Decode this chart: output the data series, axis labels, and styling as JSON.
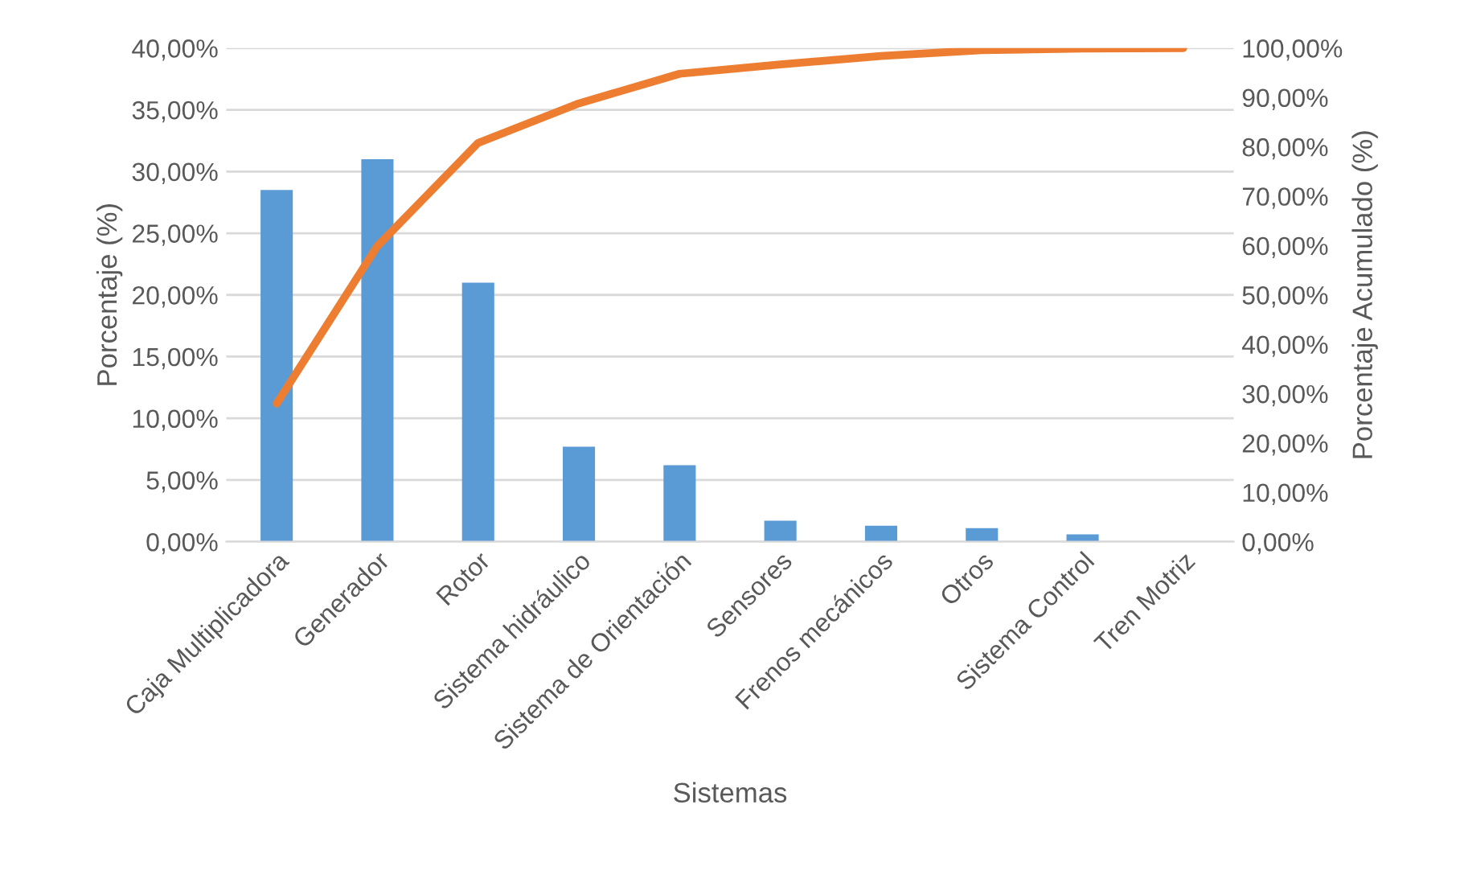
{
  "chart_data": {
    "type": "bar",
    "xlabel": "Sistemas",
    "ylabel": "Porcentaje (%)",
    "y2label": "Porcentaje Acumulado (%)",
    "categories": [
      "Caja Multiplicadora",
      "Generador",
      "Rotor",
      "Sistema hidráulico",
      "Sistema de Orientación",
      "Sensores",
      "Frenos mecánicos",
      "Otros",
      "Sistema Control",
      "Tren Motriz"
    ],
    "series": [
      {
        "color": "#5b9bd5",
        "values": [
          28.5,
          31.0,
          21.0,
          7.7,
          6.2,
          1.7,
          1.3,
          1.1,
          0.6,
          0
        ]
      },
      {
        "type": "line",
        "axis": "y2",
        "color": "#ed7d31",
        "values": [
          28.0,
          59.9,
          80.8,
          88.8,
          94.8,
          96.7,
          98.4,
          99.6,
          99.9,
          100
        ]
      }
    ],
    "ylim": [
      0,
      40
    ],
    "yticks": [
      {
        "value": 0,
        "label": "0,00%"
      },
      {
        "value": 5,
        "label": "5,00%"
      },
      {
        "value": 10,
        "label": "10,00%"
      },
      {
        "value": 15,
        "label": "15,00%"
      },
      {
        "value": 20,
        "label": "20,00%"
      },
      {
        "value": 25,
        "label": "25,00%"
      },
      {
        "value": 30,
        "label": "30,00%"
      },
      {
        "value": 35,
        "label": "35,00%"
      },
      {
        "value": 40,
        "label": "40,00%"
      }
    ],
    "y2lim": [
      0,
      100
    ],
    "y2ticks": [
      {
        "value": 0,
        "label": "0,00%"
      },
      {
        "value": 10,
        "label": "10,00%"
      },
      {
        "value": 20,
        "label": "20,00%"
      },
      {
        "value": 30,
        "label": "30,00%"
      },
      {
        "value": 40,
        "label": "40,00%"
      },
      {
        "value": 50,
        "label": "50,00%"
      },
      {
        "value": 60,
        "label": "60,00%"
      },
      {
        "value": 70,
        "label": "70,00%"
      },
      {
        "value": 80,
        "label": "80,00%"
      },
      {
        "value": 90,
        "label": "90,00%"
      },
      {
        "value": 100,
        "label": "100,00%"
      }
    ],
    "grid": "y"
  }
}
